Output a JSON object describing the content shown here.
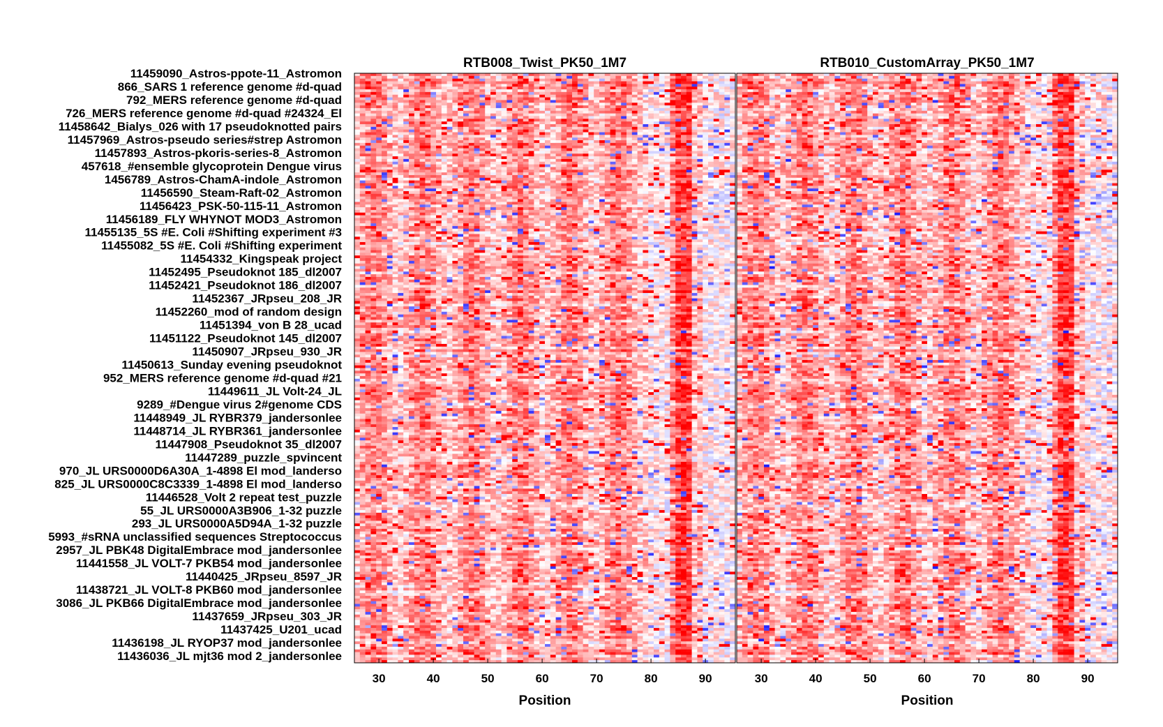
{
  "chart_data": {
    "type": "heatmap",
    "colormap": {
      "low": "#0000ff",
      "mid": "#ffffff",
      "high": "#ff0000"
    },
    "x_range": [
      26,
      95
    ],
    "x_ticks": [
      30,
      40,
      50,
      60,
      70,
      80,
      90
    ],
    "xlabel": "Position",
    "row_labels": [
      "11459090_Astros-ppote-11_Astromon",
      "866_SARS 1 reference genome #d-quad",
      "792_MERS reference genome #d-quad",
      "726_MERS reference genome #d-quad #24324_El",
      "11458642_Bialys_026 with 17 pseudoknotted pairs",
      "11457969_Astros-pseudo series#strep Astromon",
      "11457893_Astros-pkoris-series-8_Astromon",
      "457618_#ensemble glycoprotein Dengue virus",
      "1456789_Astros-ChamA-indole_Astromon",
      "11456590_Steam-Raft-02_Astromon",
      "11456423_PSK-50-115-11_Astromon",
      "11456189_FLY WHYNOT MOD3_Astromon",
      "11455135_5S #E. Coli #Shifting experiment #3",
      "11455082_5S #E. Coli #Shifting experiment",
      "11454332_Kingspeak project",
      "11452495_Pseudoknot 185_dl2007",
      "11452421_Pseudoknot 186_dl2007",
      "11452367_JRpseu_208_JR",
      "11452260_mod of random design",
      "11451394_von B 28_ucad",
      "11451122_Pseudoknot 145_dl2007",
      "11450907_JRpseu_930_JR",
      "11450613_Sunday evening pseudoknot",
      "952_MERS reference genome #d-quad #21",
      "11449611_JL Volt-24_JL",
      "9289_#Dengue virus 2#genome CDS",
      "11448949_JL RYBR379_jandersonlee",
      "11448714_JL RYBR361_jandersonlee",
      "11447908_Pseudoknot 35_dl2007",
      "11447289_puzzle_spvincent",
      "970_JL URS0000D6A30A_1-4898 El mod_landerso",
      "825_JL URS0000C8C3339_1-4898 El mod_landerso",
      "11446528_Volt 2 repeat test_puzzle",
      "55_JL URS0000A3B906_1-32 puzzle",
      "293_JL URS0000A5D94A_1-32 puzzle",
      "5993_#sRNA unclassified sequences Streptococcus",
      "2957_JL PBK48 DigitalEmbrace mod_jandersonlee",
      "11441558_JL VOLT-7 PKB54 mod_jandersonlee",
      "11440425_JRpseu_8597_JR",
      "11438721_JL VOLT-8 PKB60 mod_jandersonlee",
      "3086_JL PKB66 DigitalEmbrace mod_jandersonlee",
      "11437659_JRpseu_303_JR",
      "11437425_U201_ucad",
      "11436198_JL RYOP37 mod_jandersonlee",
      "11436036_JL mjt36 mod 2_jandersonlee"
    ],
    "panels": [
      {
        "title": "RTB008_Twist_PK50_1M7",
        "xlabel": "Position"
      },
      {
        "title": "RTB010_CustomArray_PK50_1M7",
        "xlabel": "Position"
      }
    ]
  }
}
